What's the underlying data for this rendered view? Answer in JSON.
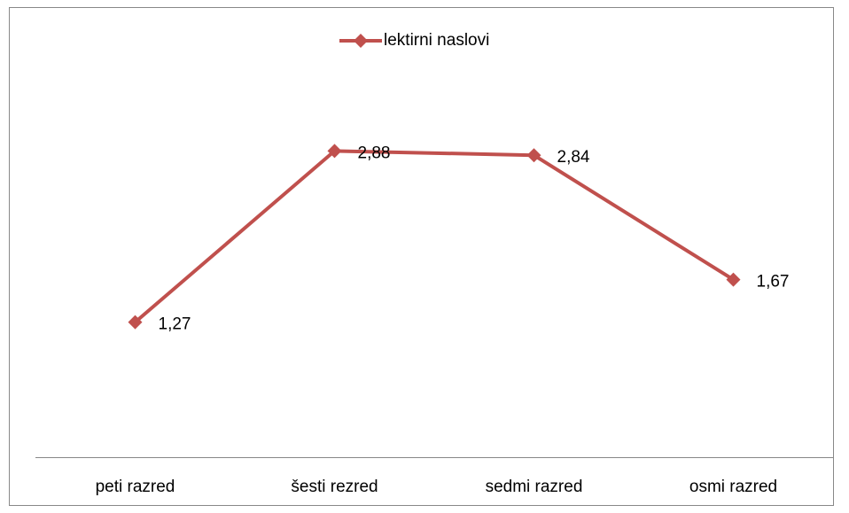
{
  "chart_data": {
    "type": "line",
    "categories": [
      "peti razred",
      "šesti rezred",
      "sedmi razred",
      "osmi razred"
    ],
    "series": [
      {
        "name": "lektirni naslovi",
        "color": "#c0504d",
        "values": [
          1.27,
          2.88,
          2.84,
          1.67
        ],
        "value_labels": [
          "1,27",
          "2,88",
          "2,84",
          "1,67"
        ]
      }
    ],
    "ylim": [
      0,
      3.5
    ],
    "legend": "top"
  }
}
